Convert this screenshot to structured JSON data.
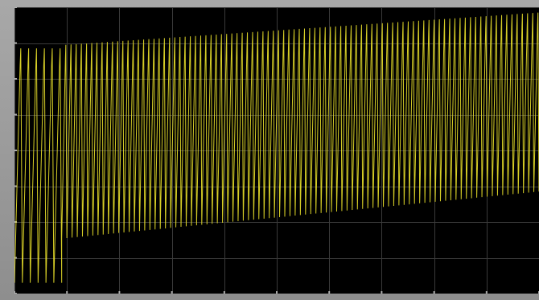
{
  "window": {
    "frame_color": "#9a9a9a"
  },
  "chart_data": {
    "type": "line",
    "title": "",
    "xlabel": "",
    "ylabel": "",
    "grid": true,
    "legend": "none",
    "background_color": "#000000",
    "grid_color": "#3a3a3a",
    "trace_color": "#e8df2a",
    "xlim": [
      0,
      100
    ],
    "ylim": [
      0,
      8
    ],
    "x_ticks": [
      0,
      10,
      20,
      30,
      40,
      50,
      60,
      70,
      80,
      90,
      100
    ],
    "y_ticks": [
      0,
      1,
      2,
      3,
      4,
      5,
      6,
      7,
      8
    ],
    "series": [
      {
        "name": "",
        "waveform": "sawtooth-oscillation",
        "segments": [
          {
            "x_start": 0,
            "x_end": 9,
            "cycles": 6,
            "peak": 6.85,
            "trough_start": 0.3,
            "trough_end": 0.3
          },
          {
            "x_start": 9,
            "x_end": 100,
            "cycles": 92,
            "peak_start": 6.95,
            "peak_end": 7.85,
            "trough_start": 1.55,
            "trough_end": 2.85
          }
        ]
      }
    ]
  }
}
